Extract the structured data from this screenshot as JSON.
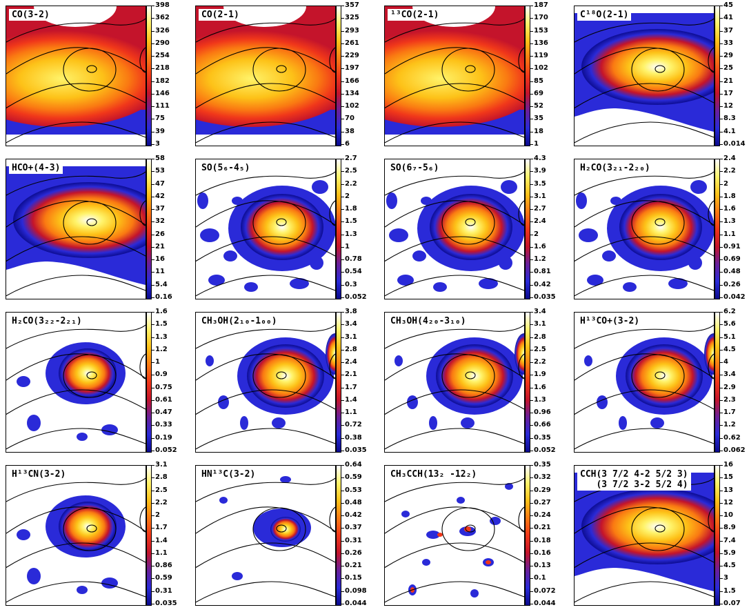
{
  "figure": {
    "colormap": [
      "#0a0a8c",
      "#2a2ad8",
      "#6a1f9a",
      "#c4142b",
      "#f0371a",
      "#fa7a12",
      "#fdc218",
      "#fff36a",
      "#ffffff"
    ],
    "contour_color": "#000000",
    "panels": [
      {
        "label": "CO(3-2)",
        "ticks": [
          "398",
          "362",
          "326",
          "290",
          "254",
          "218",
          "182",
          "146",
          "111",
          "75",
          "39",
          "3"
        ],
        "shape": "broad-band"
      },
      {
        "label": "CO(2-1)",
        "ticks": [
          "357",
          "325",
          "293",
          "261",
          "229",
          "197",
          "166",
          "134",
          "102",
          "70",
          "38",
          "6"
        ],
        "shape": "broad-band"
      },
      {
        "label": "¹³CO(2-1)",
        "ticks": [
          "187",
          "170",
          "153",
          "136",
          "119",
          "102",
          "85",
          "69",
          "52",
          "35",
          "18",
          "1"
        ],
        "shape": "broad-band"
      },
      {
        "label": "C¹⁸O(2-1)",
        "ticks": [
          "45",
          "41",
          "37",
          "33",
          "29",
          "25",
          "21",
          "17",
          "12",
          "8.3",
          "4.1",
          "0.014"
        ],
        "shape": "band"
      },
      {
        "label": "HCO+(4-3)",
        "ticks": [
          "58",
          "53",
          "47",
          "42",
          "37",
          "32",
          "26",
          "21",
          "16",
          "11",
          "5.4",
          "0.16"
        ],
        "shape": "band"
      },
      {
        "label": "SO(5₆-4₅)",
        "ticks": [
          "2.7",
          "2.5",
          "2.2",
          "2",
          "1.8",
          "1.5",
          "1.3",
          "1",
          "0.78",
          "0.54",
          "0.3",
          "0.052"
        ],
        "shape": "core-patchy"
      },
      {
        "label": "SO(6₇-5₆)",
        "ticks": [
          "4.3",
          "3.9",
          "3.5",
          "3.1",
          "2.7",
          "2.4",
          "2",
          "1.6",
          "1.2",
          "0.81",
          "0.42",
          "0.035"
        ],
        "shape": "core-patchy"
      },
      {
        "label": "H₂CO(3₂₁-2₂₀)",
        "ticks": [
          "2.4",
          "2.2",
          "2",
          "1.8",
          "1.6",
          "1.3",
          "1.1",
          "0.91",
          "0.69",
          "0.48",
          "0.26",
          "0.042"
        ],
        "shape": "core-patchy"
      },
      {
        "label": "H₂CO(3₂₂-2₂₁)",
        "ticks": [
          "1.6",
          "1.5",
          "1.3",
          "1.2",
          "1",
          "0.9",
          "0.75",
          "0.61",
          "0.47",
          "0.33",
          "0.19",
          "0.052"
        ],
        "shape": "core-small"
      },
      {
        "label": "CH₃OH(2₁₀-1₀₀)",
        "ticks": [
          "3.8",
          "3.4",
          "3.1",
          "2.8",
          "2.4",
          "2.1",
          "1.7",
          "1.4",
          "1.1",
          "0.72",
          "0.38",
          "0.035"
        ],
        "shape": "core-right"
      },
      {
        "label": "CH₃OH(4₂₀-3₁₀)",
        "ticks": [
          "3.4",
          "3.1",
          "2.8",
          "2.5",
          "2.2",
          "1.9",
          "1.6",
          "1.3",
          "0.96",
          "0.66",
          "0.35",
          "0.052"
        ],
        "shape": "core-right"
      },
      {
        "label": "H¹³CO+(3-2)",
        "ticks": [
          "6.2",
          "5.6",
          "5.1",
          "4.5",
          "4",
          "3.4",
          "2.9",
          "2.3",
          "1.7",
          "1.2",
          "0.62",
          "0.062"
        ],
        "shape": "core-right"
      },
      {
        "label": "H¹³CN(3-2)",
        "ticks": [
          "3.1",
          "2.8",
          "2.5",
          "2.2",
          "2",
          "1.7",
          "1.4",
          "1.1",
          "0.86",
          "0.59",
          "0.31",
          "0.035"
        ],
        "shape": "core-small"
      },
      {
        "label": "HN¹³C(3-2)",
        "ticks": [
          "0.64",
          "0.59",
          "0.53",
          "0.48",
          "0.42",
          "0.37",
          "0.31",
          "0.26",
          "0.21",
          "0.15",
          "0.098",
          "0.044"
        ],
        "shape": "blobs-center"
      },
      {
        "label": "CH₃CCH(13₂ -12₂)",
        "ticks": [
          "0.35",
          "0.32",
          "0.29",
          "0.27",
          "0.24",
          "0.21",
          "0.18",
          "0.16",
          "0.13",
          "0.1",
          "0.072",
          "0.044"
        ],
        "shape": "blobs-scatter"
      },
      {
        "label": "CCH(3 7/2 4-2 5/2 3)\n   (3 7/2 3-2 5/2 4)",
        "ticks": [
          "16",
          "15",
          "13",
          "12",
          "10",
          "8.9",
          "7.4",
          "5.9",
          "4.5",
          "3",
          "1.5",
          "0.07"
        ],
        "shape": "band"
      }
    ]
  }
}
